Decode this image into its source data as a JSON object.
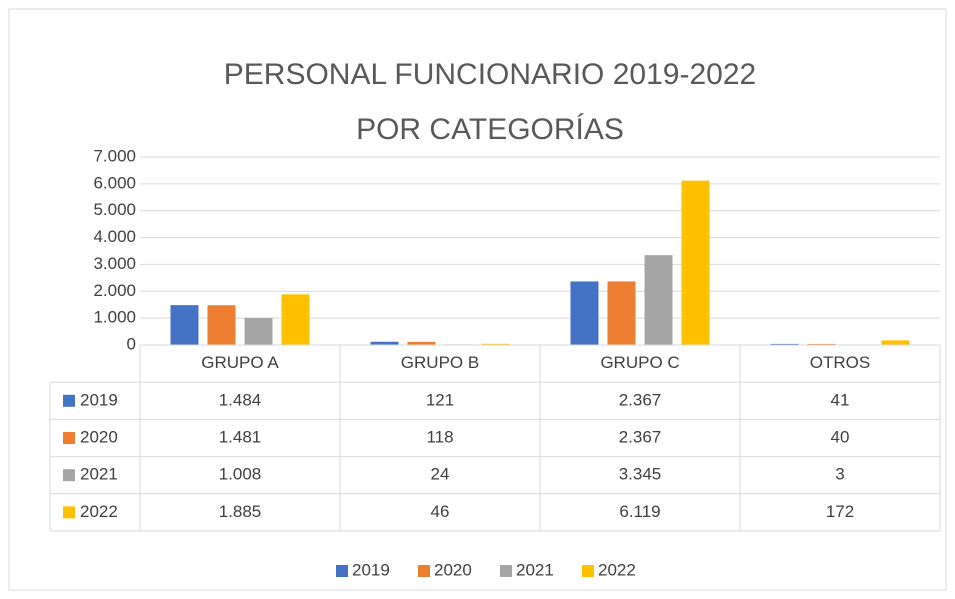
{
  "chart_data": {
    "type": "bar",
    "title": [
      "PERSONAL FUNCIONARIO 2019-2022",
      "POR CATEGORÍAS"
    ],
    "categories": [
      "GRUPO A",
      "GRUPO B",
      "GRUPO C",
      "OTROS"
    ],
    "series": [
      {
        "name": "2019",
        "color": "#4472c4",
        "values": [
          1484,
          121,
          2367,
          41
        ],
        "value_labels": [
          "1.484",
          "121",
          "2.367",
          "41"
        ]
      },
      {
        "name": "2020",
        "color": "#ed7d31",
        "values": [
          1481,
          118,
          2367,
          40
        ],
        "value_labels": [
          "1.481",
          "118",
          "2.367",
          "40"
        ]
      },
      {
        "name": "2021",
        "color": "#a5a5a5",
        "values": [
          1008,
          24,
          3345,
          3
        ],
        "value_labels": [
          "1.008",
          "24",
          "3.345",
          "3"
        ]
      },
      {
        "name": "2022",
        "color": "#ffc000",
        "values": [
          1885,
          46,
          6119,
          172
        ],
        "value_labels": [
          "1.885",
          "46",
          "6.119",
          "172"
        ]
      }
    ],
    "ylim": [
      0,
      7000
    ],
    "yticks": [
      0,
      {
        "value": 1000,
        "label": "1.000"
      },
      {
        "value": 2000,
        "label": "2.000"
      },
      {
        "value": 3000,
        "label": "3.000"
      },
      {
        "value": 4000,
        "label": "4.000"
      },
      {
        "value": 5000,
        "label": "5.000"
      },
      {
        "value": 6000,
        "label": "6.000"
      },
      {
        "value": 7000,
        "label": "7.000"
      }
    ],
    "grid": true,
    "legend": "bottom"
  }
}
